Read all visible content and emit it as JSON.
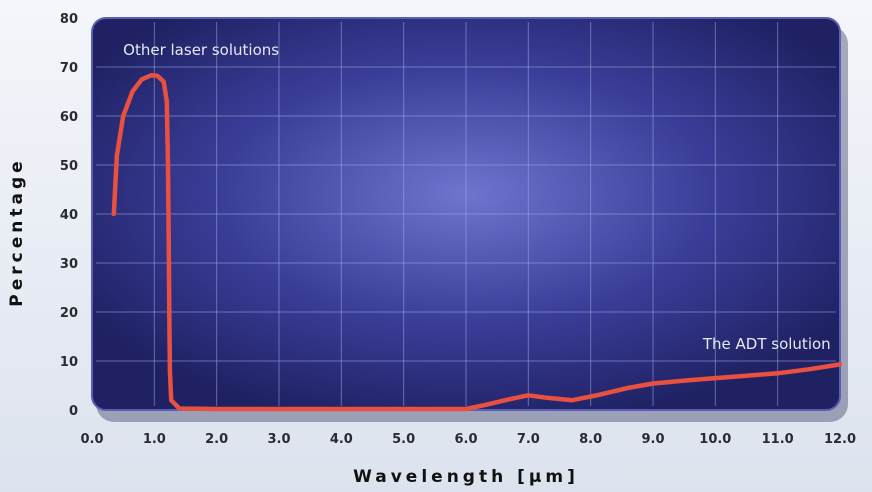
{
  "chart_data": {
    "type": "line",
    "title": "",
    "xlabel": "Wavelength [µm]",
    "ylabel": "Percentage",
    "xlim": [
      0.0,
      12.0
    ],
    "ylim": [
      0,
      80
    ],
    "x_ticks": [
      "0.0",
      "1.0",
      "2.0",
      "3.0",
      "4.0",
      "5.0",
      "6.0",
      "7.0",
      "8.0",
      "9.0",
      "10.0",
      "11.0",
      "12.0"
    ],
    "y_ticks": [
      "0",
      "10",
      "20",
      "30",
      "40",
      "50",
      "60",
      "70",
      "80"
    ],
    "grid": true,
    "line_color": "#e8503f",
    "plot_background": "#2a2d78",
    "series": [
      {
        "points": [
          [
            0.35,
            40
          ],
          [
            0.4,
            52
          ],
          [
            0.5,
            60
          ],
          [
            0.65,
            65
          ],
          [
            0.8,
            67.5
          ],
          [
            0.95,
            68.3
          ],
          [
            1.05,
            68.2
          ],
          [
            1.15,
            67
          ],
          [
            1.2,
            63
          ],
          [
            1.22,
            50
          ],
          [
            1.23,
            35
          ],
          [
            1.24,
            20
          ],
          [
            1.25,
            8
          ],
          [
            1.27,
            2
          ],
          [
            1.4,
            0.3
          ],
          [
            2.0,
            0.2
          ],
          [
            3.0,
            0.2
          ],
          [
            4.0,
            0.2
          ],
          [
            5.0,
            0.2
          ],
          [
            6.0,
            0.2
          ],
          [
            6.3,
            1.0
          ],
          [
            6.7,
            2.2
          ],
          [
            7.0,
            3.0
          ],
          [
            7.3,
            2.5
          ],
          [
            7.7,
            2.0
          ],
          [
            8.1,
            3.0
          ],
          [
            8.6,
            4.5
          ],
          [
            9.0,
            5.4
          ],
          [
            9.5,
            6.0
          ],
          [
            10.0,
            6.5
          ],
          [
            10.5,
            7.0
          ],
          [
            11.0,
            7.5
          ],
          [
            11.5,
            8.3
          ],
          [
            12.0,
            9.3
          ]
        ]
      }
    ],
    "annotations": [
      {
        "text": "Other laser solutions",
        "x": 0.5,
        "y": 72.5
      },
      {
        "text": "The ADT solution",
        "x": 9.8,
        "y": 12.5
      }
    ]
  }
}
